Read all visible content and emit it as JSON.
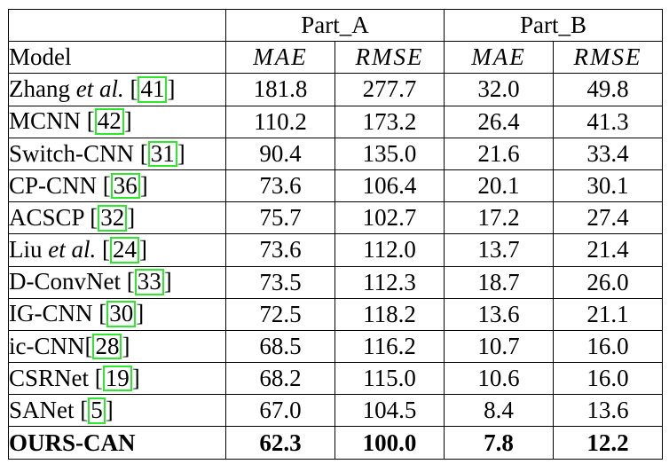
{
  "groups": {
    "part_a": "Part_A",
    "part_b": "Part_B"
  },
  "columns": {
    "model": "Model",
    "a_mae": "MAE",
    "a_rmse": "RMSE",
    "b_mae": "MAE",
    "b_rmse": "RMSE"
  },
  "rows": [
    {
      "name": "Zhang",
      "etal": "et al.",
      "ref": "41",
      "a_mae": "181.8",
      "a_rmse": "277.7",
      "b_mae": "32.0",
      "b_rmse": "49.8"
    },
    {
      "name": "MCNN",
      "etal": "",
      "ref": "42",
      "a_mae": "110.2",
      "a_rmse": "173.2",
      "b_mae": "26.4",
      "b_rmse": "41.3"
    },
    {
      "name": "Switch-CNN",
      "etal": "",
      "ref": "31",
      "a_mae": "90.4",
      "a_rmse": "135.0",
      "b_mae": "21.6",
      "b_rmse": "33.4"
    },
    {
      "name": "CP-CNN",
      "etal": "",
      "ref": "36",
      "a_mae": "73.6",
      "a_rmse": "106.4",
      "b_mae": "20.1",
      "b_rmse": "30.1"
    },
    {
      "name": "ACSCP",
      "etal": "",
      "ref": "32",
      "a_mae": "75.7",
      "a_rmse": "102.7",
      "b_mae": "17.2",
      "b_rmse": "27.4"
    },
    {
      "name": "Liu",
      "etal": "et al.",
      "ref": "24",
      "a_mae": "73.6",
      "a_rmse": "112.0",
      "b_mae": "13.7",
      "b_rmse": "21.4"
    },
    {
      "name": "D-ConvNet",
      "etal": "",
      "ref": "33",
      "a_mae": "73.5",
      "a_rmse": "112.3",
      "b_mae": "18.7",
      "b_rmse": "26.0"
    },
    {
      "name": "IG-CNN",
      "etal": "",
      "ref": "30",
      "a_mae": "72.5",
      "a_rmse": "118.2",
      "b_mae": "13.6",
      "b_rmse": "21.1"
    },
    {
      "name": "ic-CNN",
      "etal": "",
      "ref": "28",
      "a_mae": "68.5",
      "a_rmse": "116.2",
      "b_mae": "10.7",
      "b_rmse": "16.0"
    },
    {
      "name": "CSRNet",
      "etal": "",
      "ref": "19",
      "a_mae": "68.2",
      "a_rmse": "115.0",
      "b_mae": "10.6",
      "b_rmse": "16.0"
    },
    {
      "name": "SANet",
      "etal": "",
      "ref": "5",
      "a_mae": "67.0",
      "a_rmse": "104.5",
      "b_mae": "8.4",
      "b_rmse": "13.6"
    }
  ],
  "ours": {
    "name": "OURS-CAN",
    "a_mae": "62.3",
    "a_rmse": "100.0",
    "b_mae": "7.8",
    "b_rmse": "12.2"
  },
  "colors": {
    "citation_box": "#2ee82e"
  }
}
